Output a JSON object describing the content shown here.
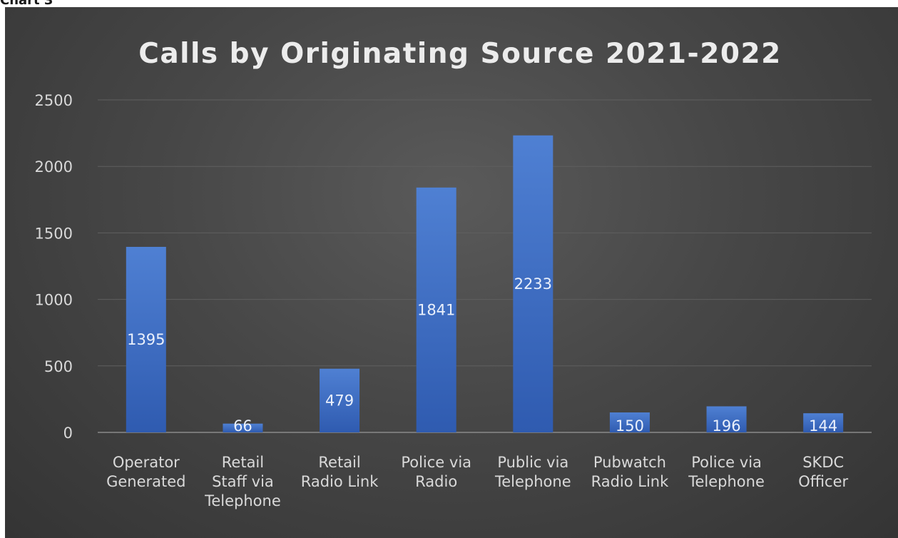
{
  "page": {
    "caption": "Chart 3"
  },
  "chart_data": {
    "type": "bar",
    "title": "Calls by Originating Source 2021-2022",
    "xlabel": "",
    "ylabel": "",
    "ylim": [
      0,
      2500
    ],
    "yticks": [
      0,
      500,
      1000,
      1500,
      2000,
      2500
    ],
    "grid": true,
    "legend": "none",
    "categories": [
      [
        "Operator",
        "Generated"
      ],
      [
        "Retail",
        "Staff via",
        "Telephone"
      ],
      [
        "Retail",
        "Radio Link"
      ],
      [
        "Police via",
        "Radio"
      ],
      [
        "Public via",
        "Telephone"
      ],
      [
        "Pubwatch",
        "Radio Link"
      ],
      [
        "Police via",
        "Telephone"
      ],
      [
        "SKDC",
        "Officer"
      ]
    ],
    "values": [
      1395,
      66,
      479,
      1841,
      2233,
      150,
      196,
      144
    ],
    "colors": {
      "bar": "#4472C4",
      "bar_dark": "#2F5597",
      "background": "#404040"
    }
  }
}
